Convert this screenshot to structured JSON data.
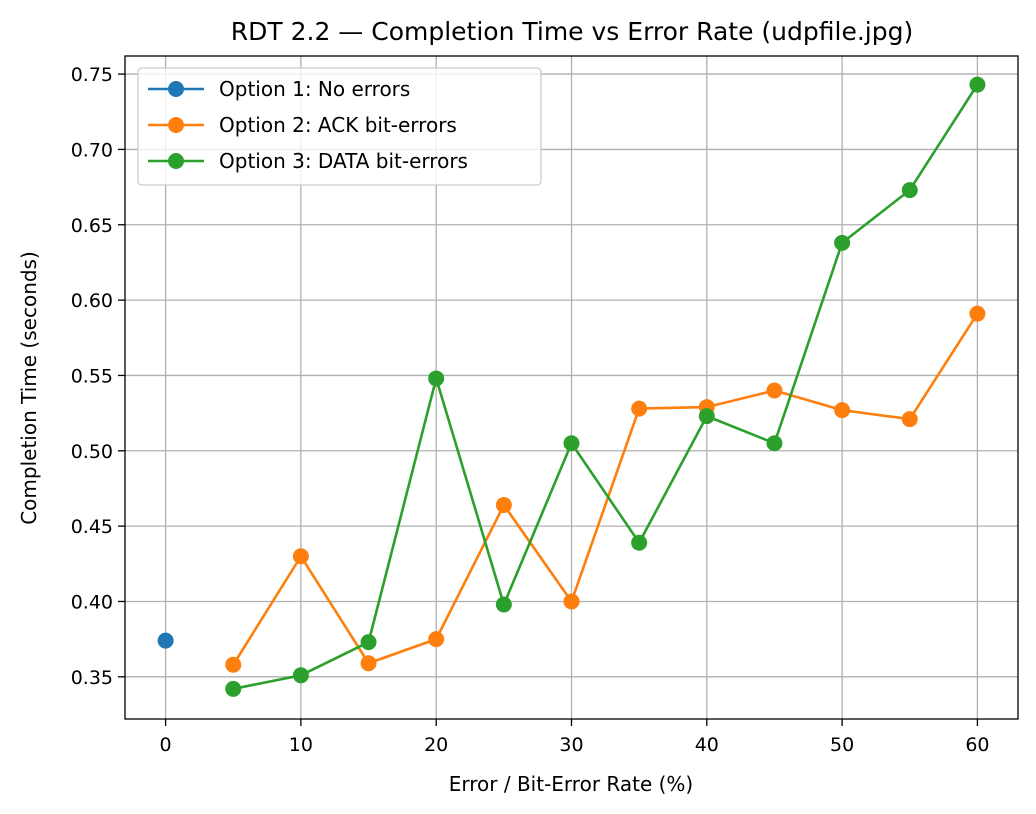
{
  "chart_data": {
    "type": "line",
    "title": "RDT 2.2 — Completion Time vs Error Rate (udpfile.jpg)",
    "xlabel": "Error / Bit-Error Rate (%)",
    "ylabel": "Completion Time (seconds)",
    "xlim": [
      -3,
      63
    ],
    "ylim": [
      0.322,
      0.762
    ],
    "xticks": [
      0,
      10,
      20,
      30,
      40,
      50,
      60
    ],
    "yticks": [
      0.35,
      0.4,
      0.45,
      0.5,
      0.55,
      0.6,
      0.65,
      0.7,
      0.75
    ],
    "ytick_labels": [
      "0.35",
      "0.40",
      "0.45",
      "0.50",
      "0.55",
      "0.60",
      "0.65",
      "0.70",
      "0.75"
    ],
    "grid": true,
    "legend_position": "top-left",
    "series": [
      {
        "name": "Option 1: No errors",
        "color": "#1f77b4",
        "x": [
          0
        ],
        "y": [
          0.374
        ]
      },
      {
        "name": "Option 2: ACK bit-errors",
        "color": "#ff7f0e",
        "x": [
          5,
          10,
          15,
          20,
          25,
          30,
          35,
          40,
          45,
          50,
          55,
          60
        ],
        "y": [
          0.358,
          0.43,
          0.359,
          0.375,
          0.464,
          0.4,
          0.528,
          0.529,
          0.54,
          0.527,
          0.521,
          0.591
        ]
      },
      {
        "name": "Option 3: DATA bit-errors",
        "color": "#2ca02c",
        "x": [
          5,
          10,
          15,
          20,
          25,
          30,
          35,
          40,
          45,
          50,
          55,
          60
        ],
        "y": [
          0.342,
          0.351,
          0.373,
          0.548,
          0.398,
          0.505,
          0.439,
          0.523,
          0.505,
          0.638,
          0.673,
          0.743
        ]
      }
    ]
  }
}
